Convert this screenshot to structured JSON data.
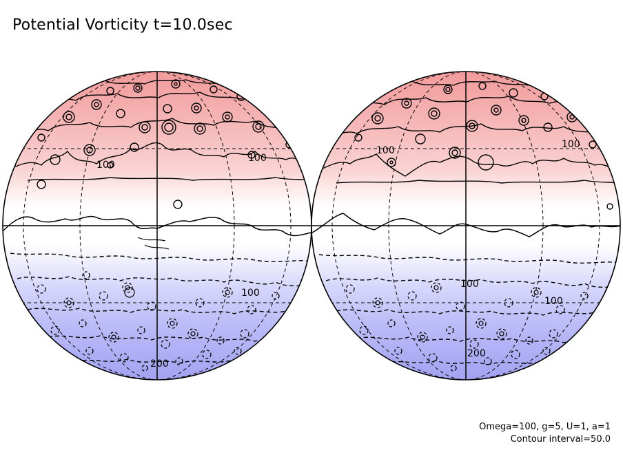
{
  "title": "Potential Vorticity t=10.0sec",
  "globes": [
    {
      "name": "left-globe",
      "labels": [
        "100",
        "100",
        "100",
        "200"
      ]
    },
    {
      "name": "right-globe",
      "labels": [
        "100",
        "100",
        "100",
        "100",
        "200"
      ]
    }
  ],
  "footer": {
    "params": "Omega=100, g=5, U=1, a=1",
    "interval": "Contour interval=50.0"
  },
  "colors": {
    "north": "#f29b9b",
    "north_mid": "#f9cfcf",
    "north_light": "#fdecec",
    "equator": "#ffffff",
    "south_light": "#ececfe",
    "south_mid": "#cfd0fb",
    "south": "#a4a4f4"
  }
}
